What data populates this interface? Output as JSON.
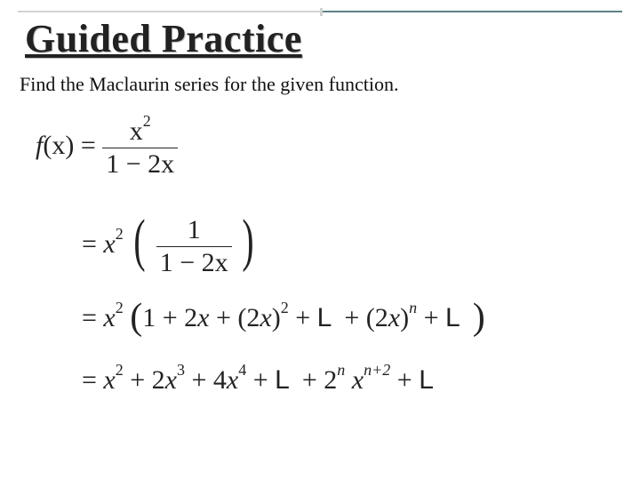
{
  "title": "Guided Practice",
  "subtitle": "Find the Maclaurin series for the given function.",
  "eq": {
    "l1": {
      "lhs_f": "f",
      "lhs_x": "(x)",
      "eq": "=",
      "num": "x",
      "num_sup": "2",
      "den_a": "1",
      "den_minus": "−",
      "den_b": "2",
      "den_x": "x"
    },
    "l2": {
      "eq": "=",
      "x": "x",
      "x_sup": "2",
      "num": "1",
      "den_a": "1",
      "den_minus": "−",
      "den_b": "2",
      "den_x": "x"
    },
    "l3": {
      "eq": "=",
      "x": "x",
      "x_sup": "2",
      "one": "1",
      "plus1": "+",
      "two": "2",
      "xv": "x",
      "plus2": "+",
      "lp": "(",
      "two2": "2",
      "xv2": "x",
      "rp": ")",
      "sq": "2",
      "plus3": "+",
      "L1": "L",
      "plus4": "+",
      "lp2": "(",
      "two3": "2",
      "xv3": "x",
      "rp2": ")",
      "n": "n",
      "plus5": "+",
      "L2": "L"
    },
    "l4": {
      "eq": "=",
      "x": "x",
      "x_sup": "2",
      "plus1": "+",
      "two": "2",
      "xv": "x",
      "cube": "3",
      "plus2": "+",
      "four": "4",
      "xv2": "x",
      "p4": "4",
      "plus3": "+",
      "L1": "L",
      "plus4": "+",
      "two2": "2",
      "n": "n",
      "xv3": "x",
      "np2": "n+2",
      "plus5": "+",
      "L2": "L"
    }
  },
  "style": {
    "title_fontsize": 44,
    "subtitle_fontsize": 22,
    "math_fontsize": 30,
    "title_color": "#222222",
    "rule_left_color": "#d0d4d0",
    "rule_right_color": "#5d8287",
    "background": "#ffffff"
  }
}
